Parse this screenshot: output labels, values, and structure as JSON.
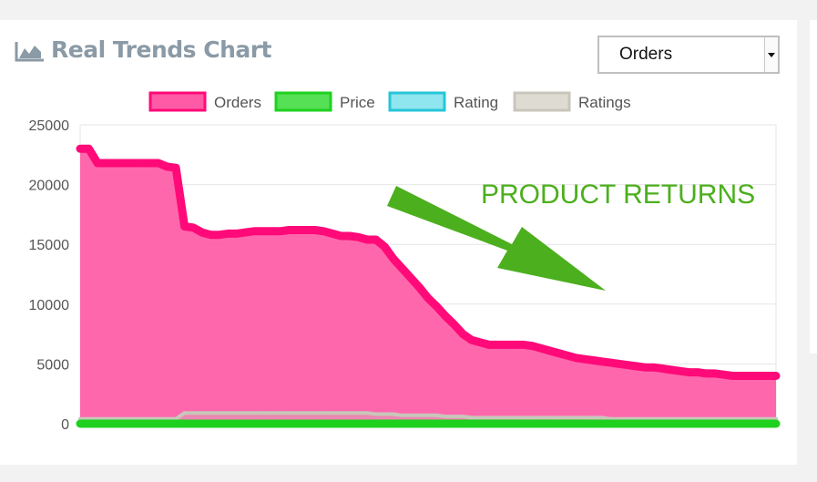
{
  "header": {
    "title": "Real Trends Chart",
    "icon": "area-chart-icon"
  },
  "metric_select": {
    "value": "Orders"
  },
  "annotation": {
    "text": "PRODUCT RETURNS",
    "color": "#4caf1e"
  },
  "colors": {
    "orders": "#ff0a78",
    "orders_fill": "#ff5aa6",
    "price": "#1fd11f",
    "rating": "#25c6d8",
    "ratings": "#c8c6ba",
    "axis_text": "#555555",
    "title": "#8a9aa6"
  },
  "chart_data": {
    "type": "area",
    "title": "",
    "xlabel": "",
    "ylabel": "",
    "ylim": [
      0,
      25000
    ],
    "yticks": [
      0,
      5000,
      10000,
      15000,
      20000,
      25000
    ],
    "ytick_labels": [
      "0",
      "5000",
      "10000",
      "15000",
      "20000",
      "25000"
    ],
    "legend": {
      "position": "top-center"
    },
    "grid": true,
    "x": [
      0,
      1,
      2,
      3,
      4,
      5,
      6,
      7,
      8,
      9,
      10,
      11,
      12,
      13,
      14,
      15,
      16,
      17,
      18,
      19,
      20,
      21,
      22,
      23,
      24,
      25,
      26,
      27,
      28,
      29,
      30,
      31,
      32,
      33,
      34,
      35,
      36,
      37,
      38,
      39,
      40,
      41,
      42,
      43,
      44,
      45,
      46,
      47,
      48,
      49,
      50,
      51,
      52,
      53,
      54,
      55,
      56,
      57,
      58,
      59,
      60,
      61,
      62,
      63,
      64,
      65,
      66,
      67,
      68,
      69,
      70,
      71,
      72,
      73,
      74,
      75,
      76,
      77,
      78,
      79,
      80
    ],
    "series": [
      {
        "name": "Orders",
        "values": [
          23000,
          23000,
          21800,
          21800,
          21800,
          21800,
          21800,
          21800,
          21800,
          21800,
          21500,
          21400,
          16500,
          16400,
          16000,
          15800,
          15800,
          15900,
          15900,
          16000,
          16100,
          16100,
          16100,
          16100,
          16200,
          16200,
          16200,
          16200,
          16100,
          15900,
          15700,
          15700,
          15600,
          15400,
          15400,
          14800,
          13800,
          13000,
          12200,
          11400,
          10500,
          9800,
          9000,
          8300,
          7500,
          7000,
          6800,
          6600,
          6600,
          6600,
          6600,
          6600,
          6500,
          6300,
          6100,
          5900,
          5700,
          5500,
          5400,
          5300,
          5200,
          5100,
          5000,
          4900,
          4800,
          4700,
          4700,
          4600,
          4500,
          4400,
          4300,
          4300,
          4200,
          4200,
          4100,
          4000,
          4000,
          4000,
          4000,
          4000,
          4000
        ]
      },
      {
        "name": "Price",
        "values": [
          0,
          0,
          0,
          0,
          0,
          0,
          0,
          0,
          0,
          0,
          0,
          0,
          0,
          0,
          0,
          0,
          0,
          0,
          0,
          0,
          0,
          0,
          0,
          0,
          0,
          0,
          0,
          0,
          0,
          0,
          0,
          0,
          0,
          0,
          0,
          0,
          0,
          0,
          0,
          0,
          0,
          0,
          0,
          0,
          0,
          0,
          0,
          0,
          0,
          0,
          0,
          0,
          0,
          0,
          0,
          0,
          0,
          0,
          0,
          0,
          0,
          0,
          0,
          0,
          0,
          0,
          0,
          0,
          0,
          0,
          0,
          0,
          0,
          0,
          0,
          0,
          0,
          0,
          0,
          0,
          0
        ]
      },
      {
        "name": "Rating",
        "values": [
          0,
          0,
          0,
          0,
          0,
          0,
          0,
          0,
          0,
          0,
          0,
          0,
          0,
          0,
          0,
          0,
          0,
          0,
          0,
          0,
          0,
          0,
          0,
          0,
          0,
          0,
          0,
          0,
          0,
          0,
          0,
          0,
          0,
          0,
          0,
          0,
          0,
          0,
          0,
          0,
          0,
          0,
          0,
          0,
          0,
          0,
          0,
          0,
          0,
          0,
          0,
          0,
          0,
          0,
          0,
          0,
          0,
          0,
          0,
          0,
          0,
          0,
          0,
          0,
          0,
          0,
          0,
          0,
          0,
          0,
          0,
          0,
          0,
          0,
          0,
          0,
          0,
          0,
          0,
          0,
          0
        ]
      },
      {
        "name": "Ratings",
        "values": [
          400,
          400,
          400,
          400,
          400,
          400,
          400,
          400,
          400,
          400,
          400,
          400,
          900,
          900,
          900,
          900,
          900,
          900,
          900,
          900,
          900,
          900,
          900,
          900,
          900,
          900,
          900,
          900,
          900,
          900,
          900,
          900,
          900,
          900,
          800,
          800,
          800,
          700,
          700,
          700,
          700,
          700,
          600,
          600,
          600,
          500,
          500,
          500,
          500,
          500,
          500,
          500,
          500,
          500,
          500,
          500,
          500,
          500,
          500,
          500,
          500,
          400,
          400,
          400,
          400,
          400,
          400,
          400,
          400,
          400,
          400,
          400,
          400,
          400,
          400,
          400,
          400,
          400,
          400,
          400,
          400
        ]
      }
    ]
  }
}
